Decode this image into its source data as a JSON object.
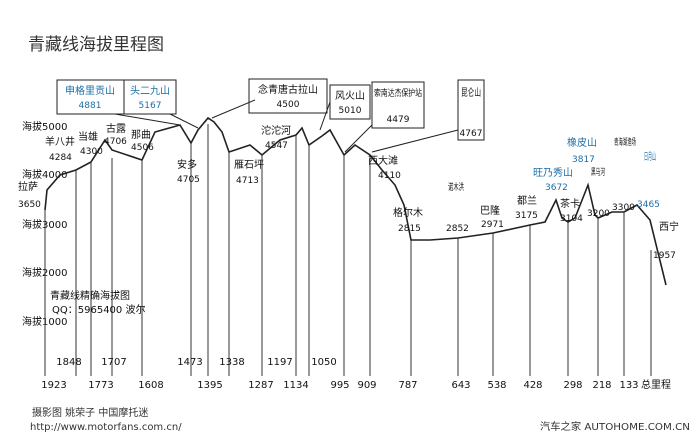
{
  "title": "青藏线海拔里程图",
  "alt_axis": {
    "labels": [
      "海拔5000",
      "海拔4000",
      "海拔3000",
      "海拔2000",
      "海拔1000"
    ],
    "values": [
      5000,
      4000,
      3000,
      2000,
      1000
    ]
  },
  "start": {
    "name": "拉萨",
    "elev": "3650"
  },
  "passes_boxed": [
    {
      "name": "申格里贡山",
      "elev": "4881"
    },
    {
      "name": "头二九山",
      "elev": "5167"
    },
    {
      "name": "念青唐古拉山",
      "elev": "4500"
    },
    {
      "name": "风火山",
      "elev": "5010"
    },
    {
      "name": "索南达杰保护站",
      "elev": "4479"
    },
    {
      "name": "昆仑山",
      "elev": "4767"
    }
  ],
  "points": [
    {
      "name": "羊八井",
      "elev": "4284"
    },
    {
      "name": "当雄",
      "elev": "4300"
    },
    {
      "name": "古露",
      "elev": "4706"
    },
    {
      "name": "那曲",
      "elev": "4506"
    },
    {
      "name": "安多",
      "elev": "4705"
    },
    {
      "name": "雁石坪",
      "elev": "4713"
    },
    {
      "name": "沱沱河",
      "elev": "4547"
    },
    {
      "name": "西大滩",
      "elev": "4110"
    },
    {
      "name": "格尔木",
      "elev": "2815"
    },
    {
      "name": "诺木洪",
      "elev": "2852"
    },
    {
      "name": "巴隆",
      "elev": "2971"
    },
    {
      "name": "都兰",
      "elev": "3175"
    },
    {
      "name": "茶卡",
      "elev": "3104"
    },
    {
      "name": "黑马河",
      "elev": "3200"
    },
    {
      "name": "青海湖渔场",
      "elev": "3300"
    },
    {
      "name": "西宁",
      "elev": "1957"
    }
  ],
  "blue_points": [
    {
      "name": "橡皮山",
      "elev": "3817"
    },
    {
      "name": "旺乃秀山",
      "elev": "3672"
    },
    {
      "name": "日月山",
      "elev": "3465"
    }
  ],
  "credit": {
    "line1": "青藏线精确海拔图",
    "line2": "QQ：5965400 波尔"
  },
  "distances_upper": [
    "1848",
    "1707",
    "1473",
    "1338",
    "1197",
    "1050"
  ],
  "distances_lower": [
    "1923",
    "1773",
    "1608",
    "1395",
    "1287",
    "1134",
    "995",
    "909",
    "787",
    "643",
    "538",
    "428",
    "298",
    "218",
    "133"
  ],
  "km_label": "总里程",
  "footer": {
    "left_line1": "摄影图 姚荣子 中国摩托迷",
    "left_line2": "http://www.motorfans.com.cn/",
    "right": "汽车之家 AUTOHOME.COM.CN"
  },
  "colors": {
    "line": "#222222",
    "blue_text": "#1a6fa8",
    "box_border": "#222222"
  }
}
